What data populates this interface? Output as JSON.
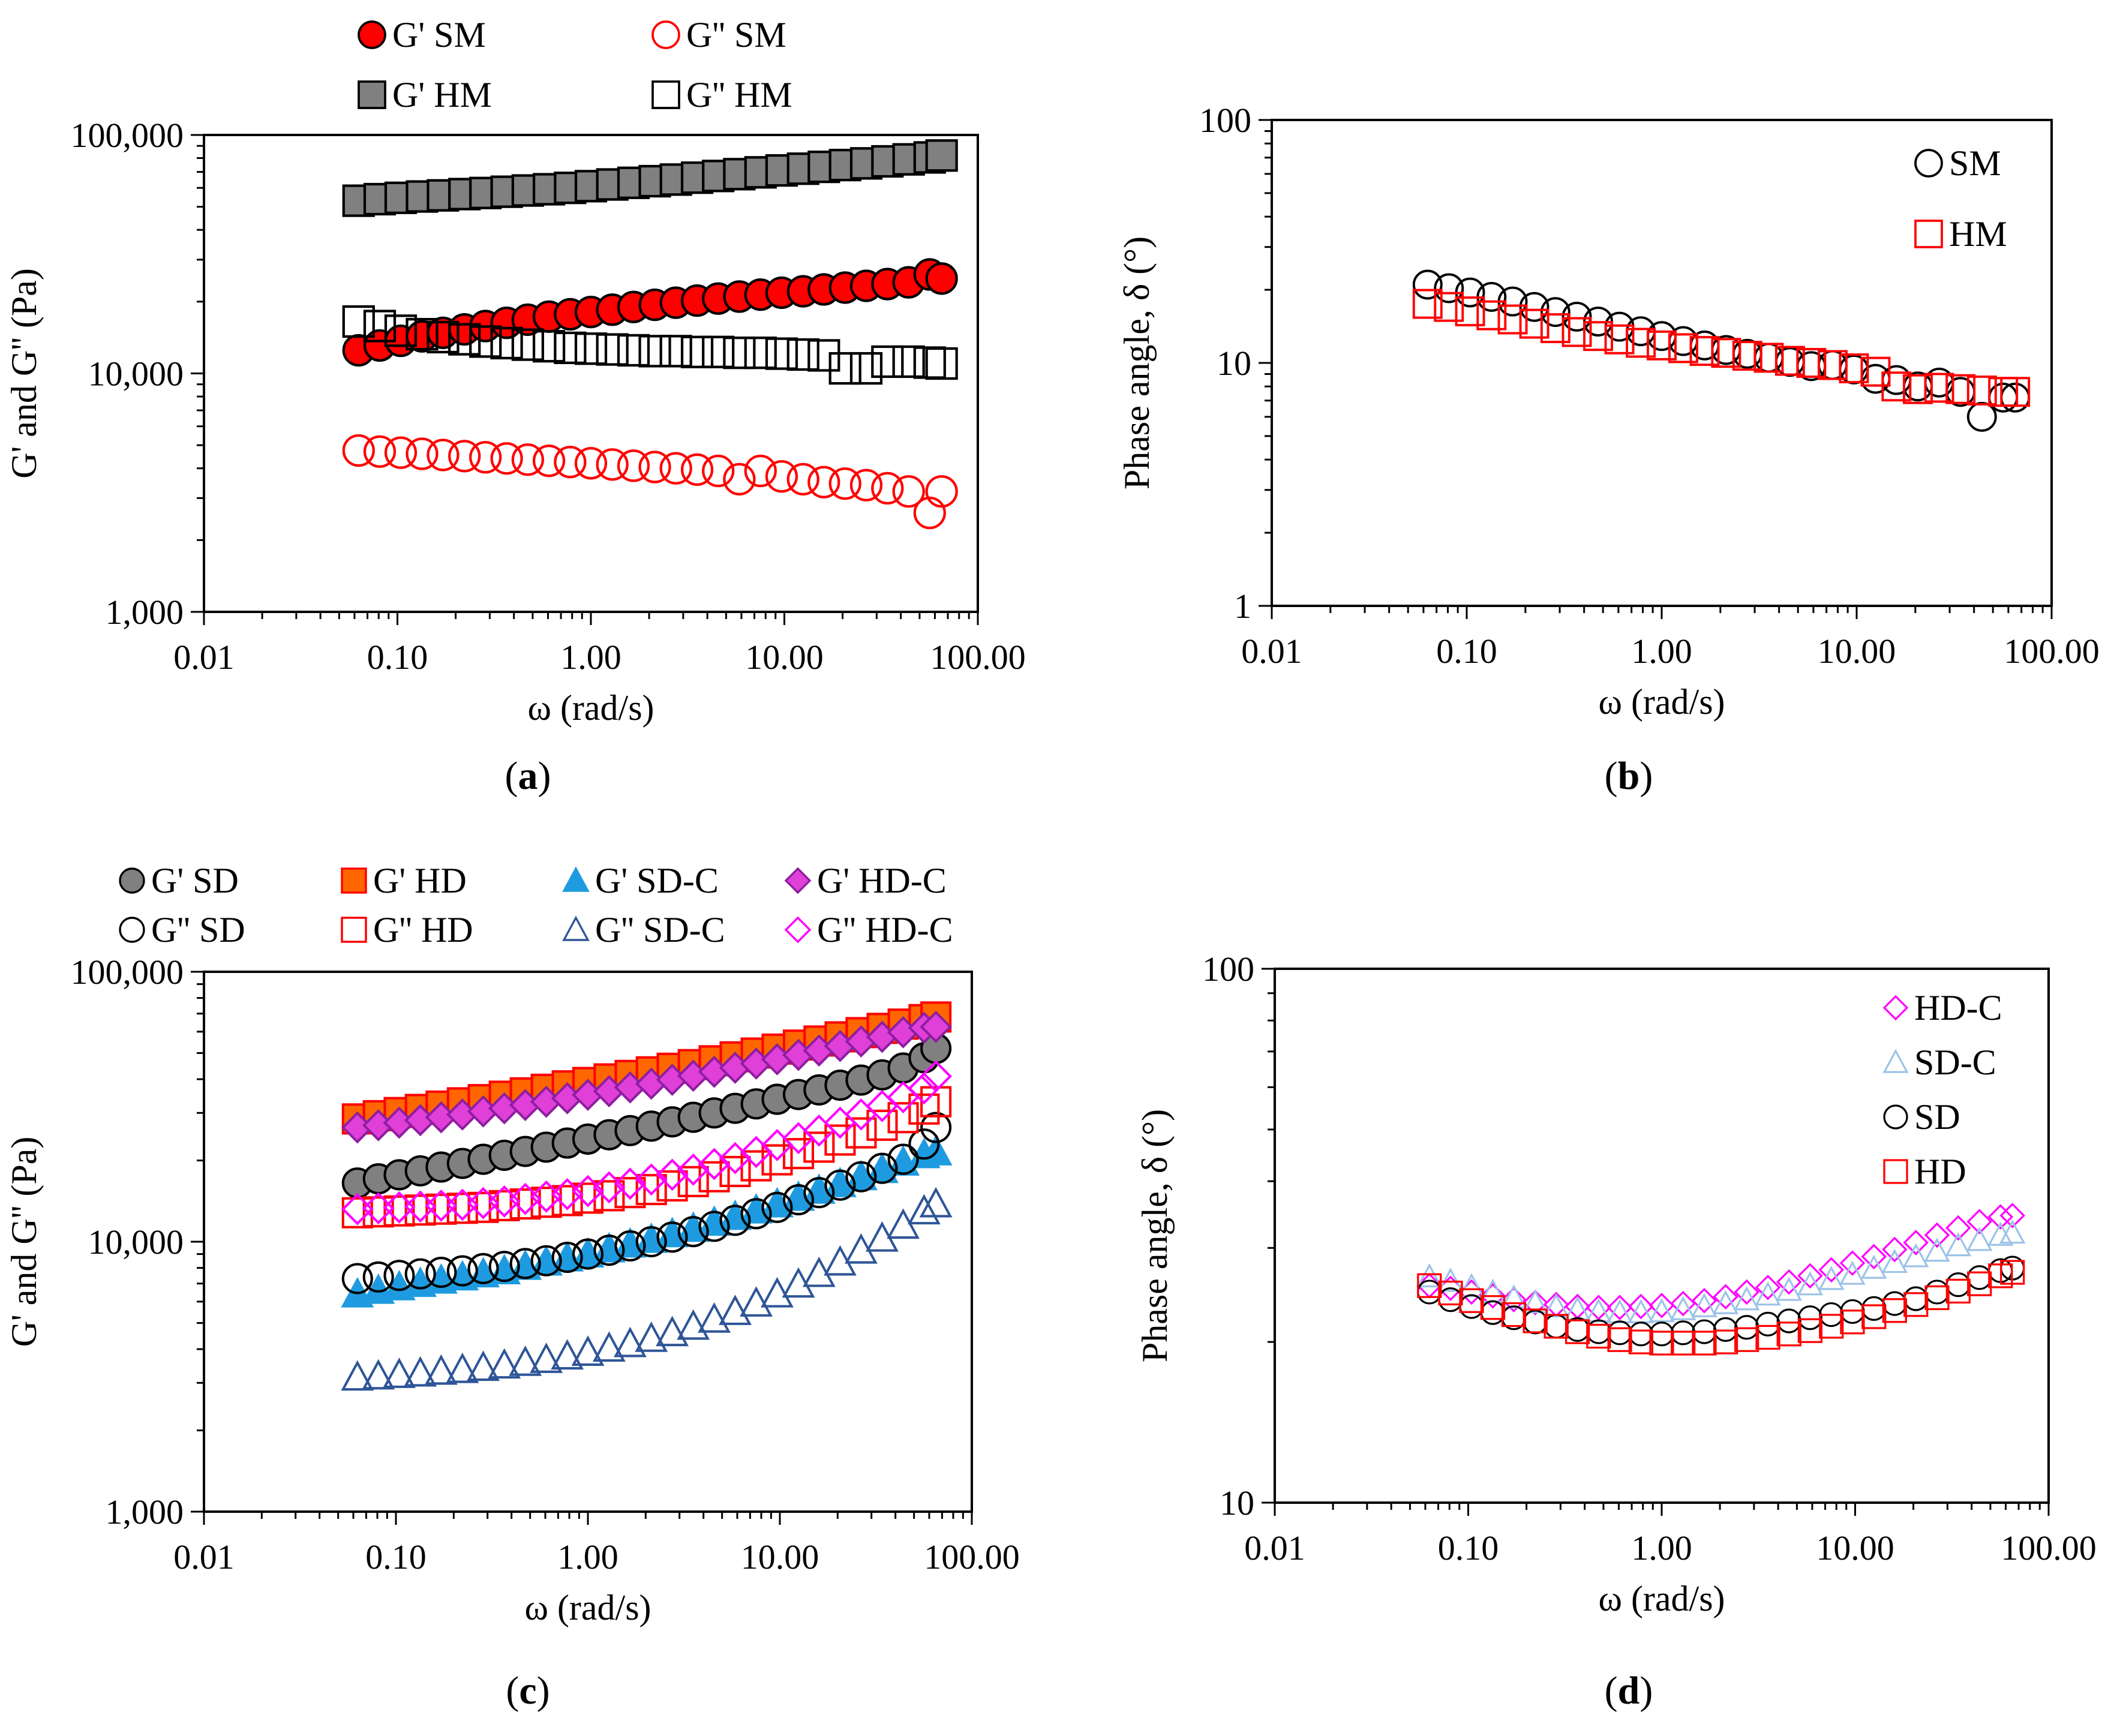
{
  "figure": {
    "background": "#ffffff"
  },
  "chart_data": [
    {
      "id": "a",
      "panel_label_open": "(",
      "panel_label_letter": "a",
      "panel_label_close": ")",
      "type": "scatter",
      "xscale": "log",
      "yscale": "log",
      "xlim": [
        0.01,
        100
      ],
      "ylim": [
        1000,
        100000
      ],
      "xticks": [
        0.01,
        0.1,
        1,
        10,
        100
      ],
      "xtick_labels": [
        "0.01",
        "0.10",
        "1.00",
        "10.00",
        "100.00"
      ],
      "yticks": [
        1000,
        10000,
        100000
      ],
      "ytick_labels": [
        "1,000",
        "10,000",
        "100,000"
      ],
      "xlabel": "ω (rad/s)",
      "ylabel": "G' and G'' (Pa)",
      "legend_position": "top",
      "legend_columns": 2,
      "x": [
        0.063,
        0.081,
        0.104,
        0.134,
        0.172,
        0.222,
        0.285,
        0.367,
        0.472,
        0.607,
        0.781,
        1.0,
        1.29,
        1.66,
        2.14,
        2.75,
        3.54,
        4.55,
        5.85,
        7.53,
        9.68,
        12.5,
        16.0,
        20.6,
        26.5,
        34.1,
        43.9,
        56.4,
        65.0
      ],
      "series": [
        {
          "name": "G'  SM",
          "marker": "circle",
          "fill": "#ff0000",
          "stroke": "#000000",
          "values": [
            12500,
            13100,
            13700,
            14300,
            14800,
            15300,
            15800,
            16300,
            16800,
            17300,
            17700,
            18100,
            18500,
            19000,
            19400,
            19800,
            20200,
            20600,
            21000,
            21400,
            21800,
            22100,
            22500,
            22900,
            23300,
            23700,
            24100,
            26000,
            25000
          ]
        },
        {
          "name": "G' HM",
          "marker": "square",
          "fill": "#808080",
          "stroke": "#000000",
          "values": [
            53000,
            53800,
            54500,
            55200,
            55800,
            56500,
            57100,
            57800,
            58500,
            59200,
            60000,
            61000,
            62000,
            63000,
            64000,
            65000,
            66200,
            67300,
            68500,
            69700,
            71000,
            72200,
            73500,
            74800,
            76000,
            77500,
            79000,
            80500,
            82000
          ]
        },
        {
          "name": "G'' SM",
          "marker": "circle",
          "fill": "none",
          "stroke": "#ff0000",
          "values": [
            4750,
            4700,
            4650,
            4600,
            4550,
            4500,
            4450,
            4400,
            4350,
            4300,
            4250,
            4200,
            4150,
            4100,
            4050,
            4000,
            3950,
            3900,
            3600,
            3900,
            3700,
            3600,
            3500,
            3450,
            3400,
            3300,
            3200,
            2600,
            3200
          ]
        },
        {
          "name": "G'' HM",
          "marker": "square",
          "fill": "none",
          "stroke": "#000000",
          "values": [
            16500,
            15800,
            15100,
            14600,
            14200,
            13900,
            13600,
            13400,
            13200,
            13000,
            12800,
            12700,
            12600,
            12500,
            12400,
            12400,
            12300,
            12300,
            12200,
            12200,
            12100,
            12000,
            11900,
            10500,
            10500,
            11200,
            11200,
            11100,
            11000
          ]
        }
      ]
    },
    {
      "id": "b",
      "panel_label_open": "(",
      "panel_label_letter": "b",
      "panel_label_close": ")",
      "type": "scatter",
      "xscale": "log",
      "yscale": "log",
      "xlim": [
        0.01,
        100
      ],
      "ylim": [
        1,
        100
      ],
      "xticks": [
        0.01,
        0.1,
        1,
        10,
        100
      ],
      "xtick_labels": [
        "0.01",
        "0.10",
        "1.00",
        "10.00",
        "100.00"
      ],
      "yticks": [
        1,
        10,
        100
      ],
      "ytick_labels": [
        "1",
        "10",
        "100"
      ],
      "xlabel": "ω (rad/s)",
      "ylabel": "Phase angle, δ (°)",
      "legend_position": "top-right",
      "legend_columns": 1,
      "x": [
        0.063,
        0.081,
        0.104,
        0.134,
        0.172,
        0.222,
        0.285,
        0.367,
        0.472,
        0.607,
        0.781,
        1.0,
        1.29,
        1.66,
        2.14,
        2.75,
        3.54,
        4.55,
        5.85,
        7.53,
        9.68,
        12.5,
        16.0,
        20.6,
        26.5,
        34.1,
        43.9,
        56.4,
        65.0
      ],
      "series": [
        {
          "name": "SM",
          "marker": "circle",
          "fill": "none",
          "stroke": "#000000",
          "values": [
            21,
            20.3,
            19.5,
            18.7,
            17.9,
            17.0,
            16.2,
            15.5,
            14.8,
            14.1,
            13.5,
            12.9,
            12.3,
            11.8,
            11.3,
            10.9,
            10.5,
            10.1,
            9.7,
            9.8,
            9.4,
            8.6,
            8.5,
            8.0,
            8.3,
            7.6,
            6.0,
            7.2,
            7.2
          ]
        },
        {
          "name": "HM",
          "marker": "square",
          "fill": "none",
          "stroke": "#ff0000",
          "values": [
            17.5,
            17.0,
            16.3,
            15.7,
            15.1,
            14.5,
            13.9,
            13.4,
            12.9,
            12.5,
            12.1,
            11.8,
            11.5,
            11.2,
            11.0,
            10.7,
            10.5,
            10.2,
            10.0,
            9.8,
            9.5,
            9.2,
            8.0,
            7.8,
            7.9,
            7.8,
            7.7,
            7.6,
            7.6
          ]
        }
      ]
    },
    {
      "id": "c",
      "panel_label_open": "(",
      "panel_label_letter": "c",
      "panel_label_close": ")",
      "type": "scatter",
      "xscale": "log",
      "yscale": "log",
      "xlim": [
        0.01,
        100
      ],
      "ylim": [
        1000,
        100000
      ],
      "xticks": [
        0.01,
        0.1,
        1,
        10,
        100
      ],
      "xtick_labels": [
        "0.01",
        "0.10",
        "1.00",
        "10.00",
        "100.00"
      ],
      "yticks": [
        1000,
        10000,
        100000
      ],
      "ytick_labels": [
        "1,000",
        "10,000",
        "100,000"
      ],
      "xlabel": "ω (rad/s)",
      "ylabel": "G' and G'' (Pa)",
      "legend_position": "top",
      "legend_columns": 4,
      "x": [
        0.063,
        0.081,
        0.104,
        0.134,
        0.172,
        0.222,
        0.285,
        0.367,
        0.472,
        0.607,
        0.781,
        1.0,
        1.29,
        1.66,
        2.14,
        2.75,
        3.54,
        4.55,
        5.85,
        7.53,
        9.68,
        12.5,
        16.0,
        20.6,
        26.5,
        34.1,
        43.9,
        56.4,
        65.0
      ],
      "series": [
        {
          "name": "G' SD",
          "marker": "circle",
          "fill": "#808080",
          "stroke": "#000000",
          "values": [
            16500,
            17100,
            17700,
            18300,
            18900,
            19500,
            20200,
            20900,
            21600,
            22400,
            23200,
            24000,
            24900,
            25800,
            26800,
            27800,
            28900,
            30000,
            31200,
            32400,
            33700,
            35100,
            36500,
            38000,
            39700,
            41500,
            44000,
            48000,
            52000
          ]
        },
        {
          "name": "G' HD",
          "marker": "square",
          "fill": "#ff6600",
          "stroke": "#ff0000",
          "values": [
            28500,
            29300,
            30100,
            30900,
            31800,
            32700,
            33600,
            34600,
            35600,
            36700,
            37800,
            38900,
            40100,
            41300,
            42600,
            43900,
            45300,
            46800,
            48400,
            50000,
            51700,
            53500,
            55400,
            57400,
            59500,
            61700,
            64000,
            66500,
            68000
          ]
        },
        {
          "name": "G' SD-C",
          "marker": "triangle",
          "fill": "#1e9be0",
          "stroke": "#1e9be0",
          "values": [
            6400,
            6600,
            6800,
            7000,
            7200,
            7400,
            7600,
            7800,
            8100,
            8400,
            8700,
            9000,
            9400,
            9800,
            10200,
            10700,
            11200,
            11800,
            12400,
            13100,
            13800,
            14600,
            15500,
            16400,
            17400,
            18500,
            19700,
            21000,
            21500
          ]
        },
        {
          "name": "G' HD-C",
          "marker": "diamond",
          "fill": "#e040d8",
          "stroke": "#8e1ea0",
          "values": [
            26500,
            27000,
            27600,
            28200,
            28900,
            29600,
            30400,
            31200,
            32100,
            33000,
            34000,
            35000,
            36100,
            37300,
            38500,
            39800,
            41200,
            42600,
            44100,
            45700,
            47400,
            49200,
            51100,
            53100,
            55200,
            57400,
            59700,
            62000,
            62500
          ]
        },
        {
          "name": "G'' SD",
          "marker": "circle",
          "fill": "none",
          "stroke": "#000000",
          "values": [
            7300,
            7400,
            7500,
            7600,
            7700,
            7800,
            7950,
            8100,
            8300,
            8500,
            8750,
            9000,
            9300,
            9650,
            10000,
            10400,
            10900,
            11400,
            12000,
            12700,
            13400,
            14300,
            15200,
            16200,
            17400,
            18700,
            20200,
            23000,
            26500
          ]
        },
        {
          "name": "G'' HD",
          "marker": "square",
          "fill": "none",
          "stroke": "#ff0000",
          "values": [
            12800,
            12900,
            13000,
            13100,
            13200,
            13300,
            13400,
            13600,
            13800,
            14000,
            14200,
            14500,
            14800,
            15200,
            15600,
            16100,
            16700,
            17400,
            18200,
            19100,
            20100,
            21200,
            22400,
            23800,
            25300,
            27000,
            28800,
            31000,
            33000
          ]
        },
        {
          "name": "G'' SD-C",
          "marker": "triangle",
          "fill": "none",
          "stroke": "#2f5597",
          "values": [
            3150,
            3180,
            3220,
            3260,
            3310,
            3360,
            3420,
            3490,
            3570,
            3660,
            3770,
            3890,
            4030,
            4190,
            4380,
            4600,
            4860,
            5160,
            5510,
            5920,
            6400,
            6960,
            7620,
            8400,
            9300,
            10300,
            11500,
            13000,
            13800
          ]
        },
        {
          "name": "G'' HD-C",
          "marker": "diamond",
          "fill": "none",
          "stroke": "#ff00ff",
          "values": [
            13200,
            13300,
            13400,
            13500,
            13600,
            13700,
            13900,
            14100,
            14400,
            14700,
            15000,
            15400,
            15900,
            16400,
            17000,
            17700,
            18500,
            19400,
            20400,
            21500,
            22800,
            24200,
            25800,
            27600,
            29600,
            31800,
            34300,
            37000,
            41000
          ]
        }
      ]
    },
    {
      "id": "d",
      "panel_label_open": "(",
      "panel_label_letter": "d",
      "panel_label_close": ")",
      "type": "scatter",
      "xscale": "log",
      "yscale": "log",
      "xlim": [
        0.01,
        100
      ],
      "ylim": [
        10,
        100
      ],
      "xticks": [
        0.01,
        0.1,
        1,
        10,
        100
      ],
      "xtick_labels": [
        "0.01",
        "0.10",
        "1.00",
        "10.00",
        "100.00"
      ],
      "yticks": [
        10,
        100
      ],
      "ytick_labels": [
        "10",
        "100"
      ],
      "xlabel": "ω (rad/s)",
      "ylabel": "Phase angle, δ (°)",
      "legend_position": "top-right",
      "legend_columns": 1,
      "x": [
        0.063,
        0.081,
        0.104,
        0.134,
        0.172,
        0.222,
        0.285,
        0.367,
        0.472,
        0.607,
        0.781,
        1.0,
        1.29,
        1.66,
        2.14,
        2.75,
        3.54,
        4.55,
        5.85,
        7.53,
        9.68,
        12.5,
        16.0,
        20.6,
        26.5,
        34.1,
        43.9,
        56.4,
        65.0
      ],
      "series": [
        {
          "name": "HD-C",
          "marker": "diamond",
          "fill": "none",
          "stroke": "#ff00ff",
          "values": [
            25.5,
            25.2,
            24.8,
            24.4,
            24.0,
            23.7,
            23.5,
            23.3,
            23.2,
            23.2,
            23.3,
            23.4,
            23.6,
            23.9,
            24.3,
            24.8,
            25.3,
            25.9,
            26.6,
            27.3,
            28.1,
            28.9,
            29.8,
            30.7,
            31.7,
            32.7,
            33.6,
            34.3,
            34.5
          ]
        },
        {
          "name": "SD-C",
          "marker": "triangle",
          "fill": "none",
          "stroke": "#9dc3e6",
          "values": [
            26.5,
            26.0,
            25.4,
            24.8,
            24.2,
            23.7,
            23.3,
            23.0,
            22.8,
            22.7,
            22.7,
            22.8,
            23.0,
            23.3,
            23.6,
            24.0,
            24.5,
            25.0,
            25.6,
            26.2,
            26.8,
            27.5,
            28.2,
            28.9,
            29.6,
            30.3,
            31.0,
            31.7,
            32.0
          ]
        },
        {
          "name": "SD",
          "marker": "circle",
          "fill": "none",
          "stroke": "#000000",
          "values": [
            24.8,
            24.0,
            23.3,
            22.7,
            22.2,
            21.8,
            21.4,
            21.1,
            20.9,
            20.8,
            20.7,
            20.7,
            20.8,
            20.9,
            21.1,
            21.3,
            21.6,
            21.9,
            22.2,
            22.5,
            22.8,
            23.1,
            23.6,
            24.1,
            24.8,
            25.6,
            26.4,
            27.2,
            27.5
          ]
        },
        {
          "name": "HD",
          "marker": "square",
          "fill": "none",
          "stroke": "#ff0000",
          "values": [
            25.5,
            24.7,
            23.9,
            23.2,
            22.5,
            21.9,
            21.4,
            20.9,
            20.5,
            20.2,
            20.0,
            19.9,
            19.9,
            19.9,
            20.0,
            20.2,
            20.4,
            20.7,
            21.0,
            21.4,
            21.8,
            22.3,
            22.9,
            23.5,
            24.2,
            24.9,
            25.7,
            26.6,
            27.0
          ]
        }
      ]
    }
  ]
}
